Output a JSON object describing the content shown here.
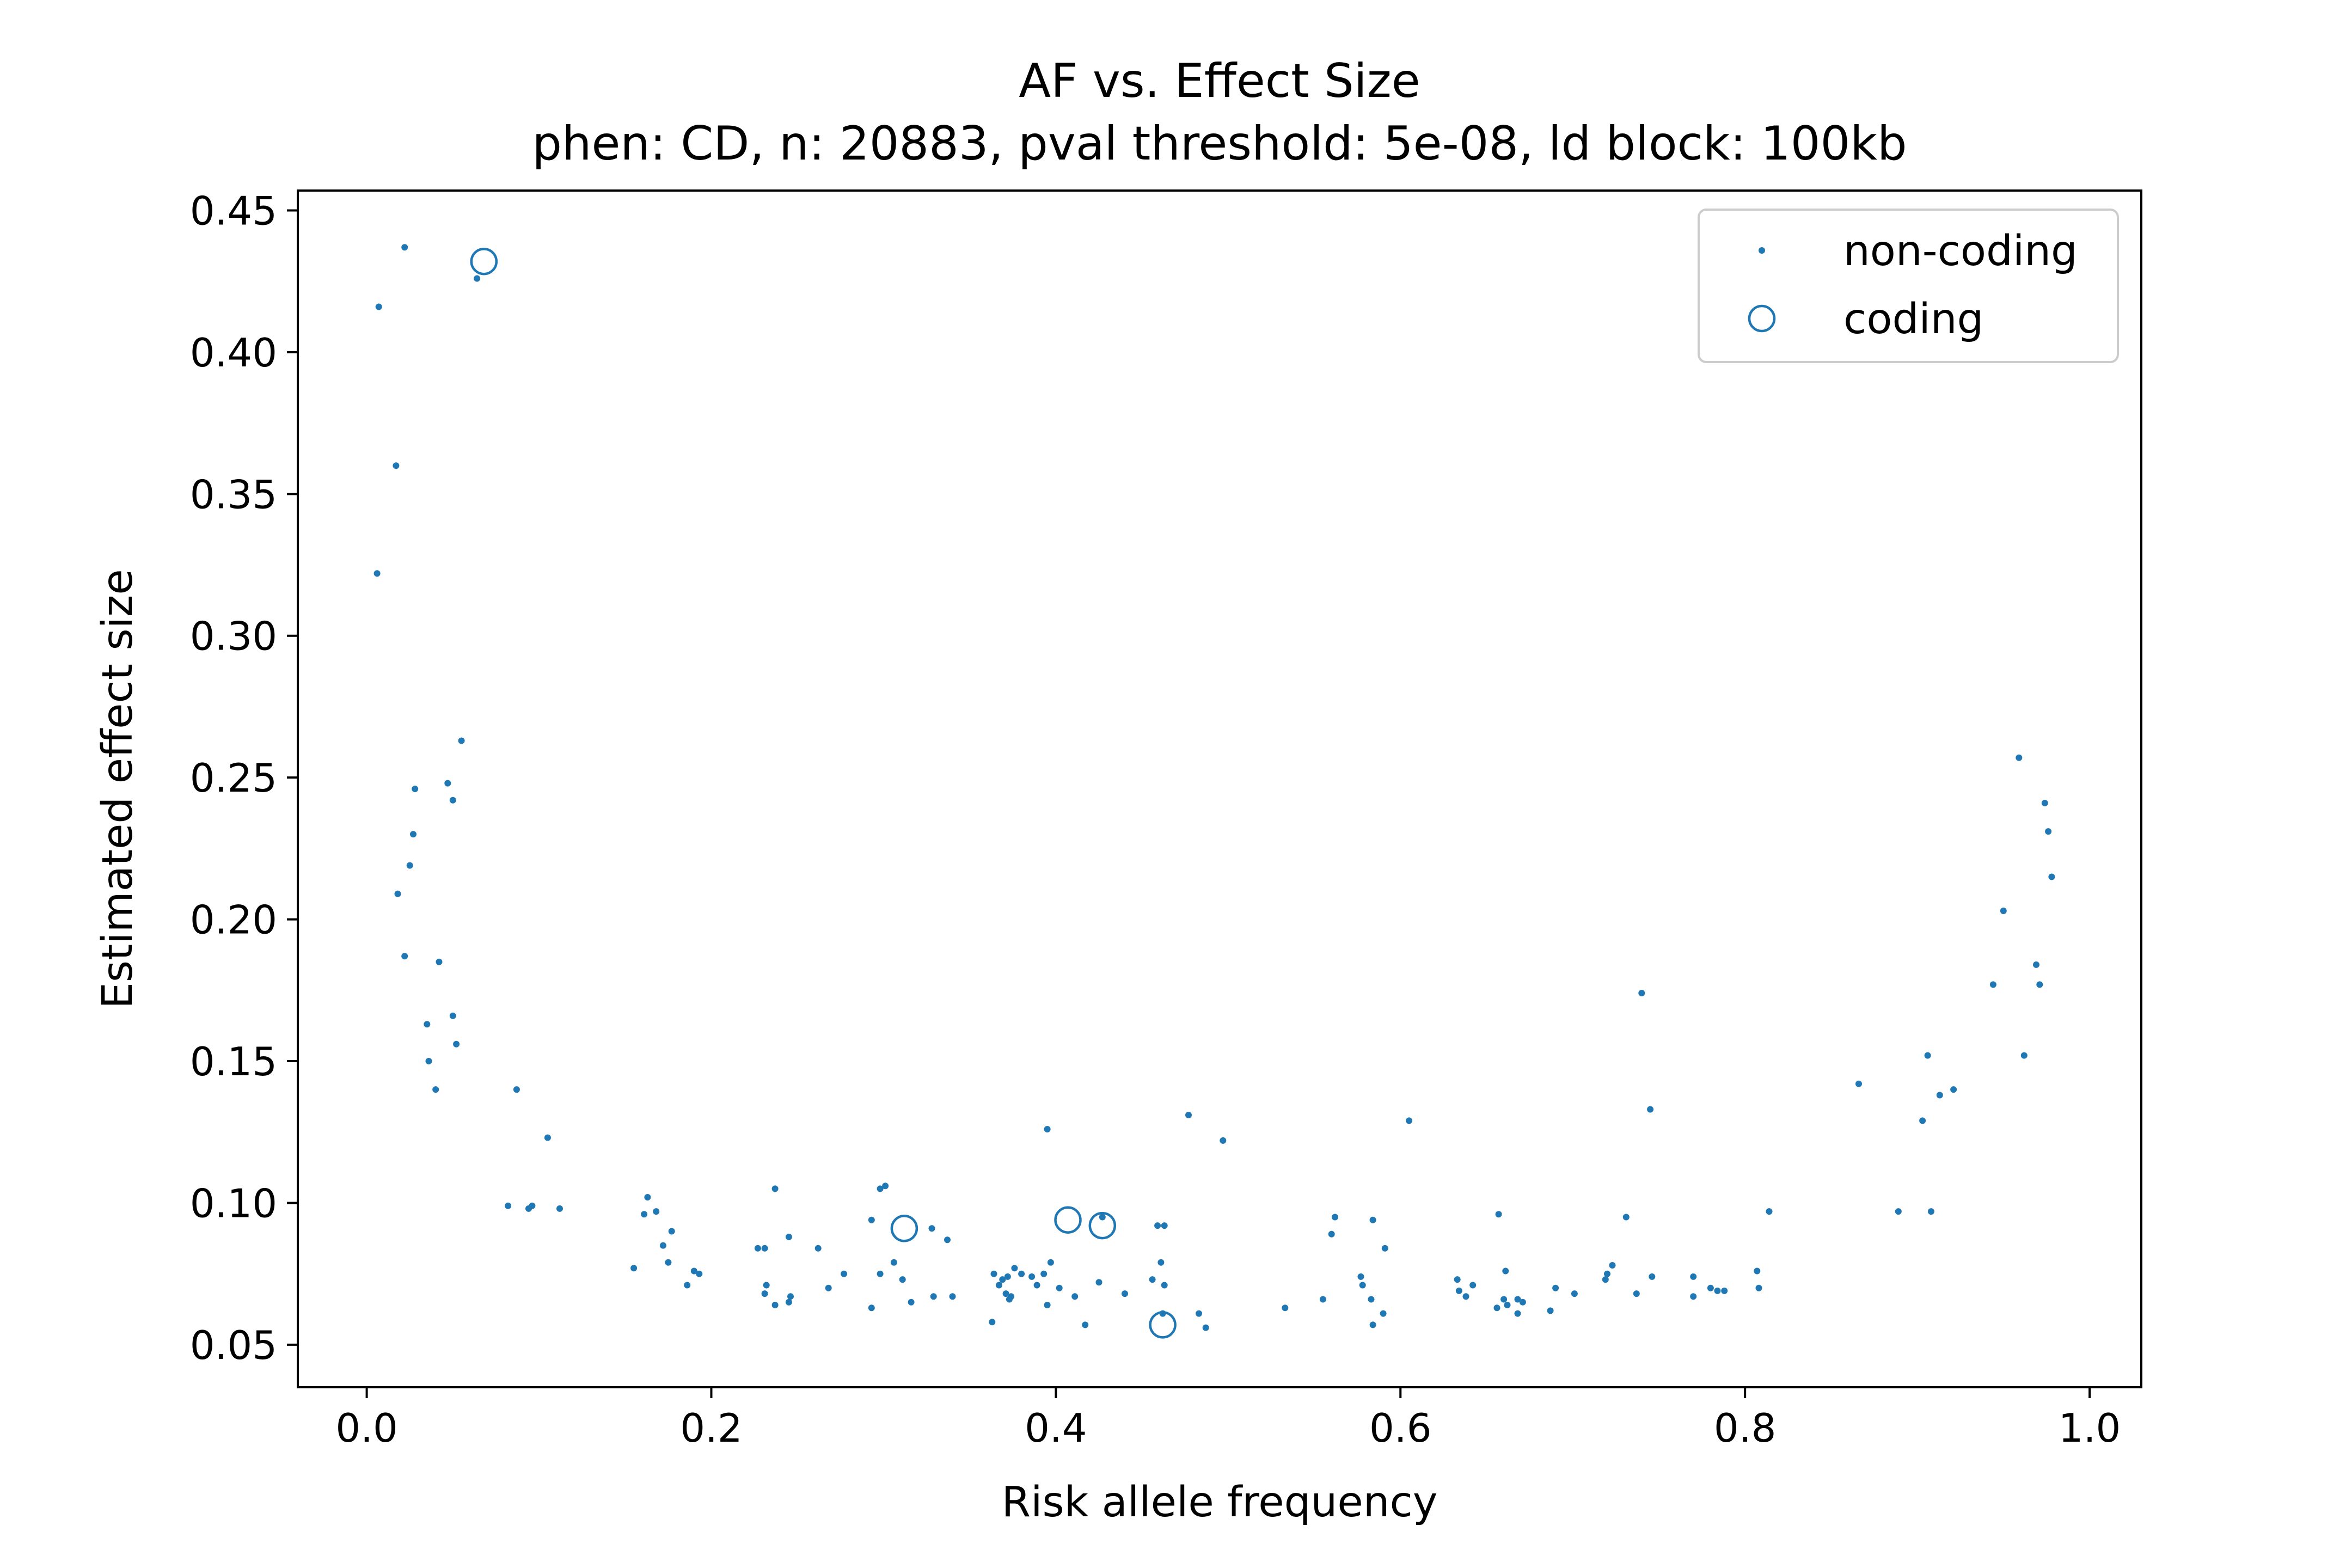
{
  "chart_data": {
    "type": "scatter",
    "title": "AF vs. Effect Size",
    "subtitle": "phen: CD, n: 20883, pval threshold: 5e-08, ld block: 100kb",
    "xlabel": "Risk allele frequency",
    "ylabel": "Estimated effect size",
    "xlim": [
      -0.04,
      1.03
    ],
    "ylim": [
      0.035,
      0.457
    ],
    "xticks": [
      "0.0",
      "0.2",
      "0.4",
      "0.6",
      "0.8",
      "1.0"
    ],
    "yticks": [
      "0.05",
      "0.10",
      "0.15",
      "0.20",
      "0.25",
      "0.30",
      "0.35",
      "0.40",
      "0.45"
    ],
    "grid": false,
    "legend_position": "top-right",
    "colors": {
      "series": "#1f77b4"
    },
    "series": [
      {
        "name": "non-coding",
        "marker": "dot",
        "points": [
          [
            0.007,
            0.416
          ],
          [
            0.022,
            0.437
          ],
          [
            0.017,
            0.36
          ],
          [
            0.006,
            0.322
          ],
          [
            0.064,
            0.426
          ],
          [
            0.055,
            0.263
          ],
          [
            0.028,
            0.246
          ],
          [
            0.047,
            0.248
          ],
          [
            0.05,
            0.242
          ],
          [
            0.027,
            0.23
          ],
          [
            0.025,
            0.219
          ],
          [
            0.018,
            0.209
          ],
          [
            0.022,
            0.187
          ],
          [
            0.042,
            0.185
          ],
          [
            0.05,
            0.166
          ],
          [
            0.035,
            0.163
          ],
          [
            0.052,
            0.156
          ],
          [
            0.036,
            0.15
          ],
          [
            0.04,
            0.14
          ],
          [
            0.087,
            0.14
          ],
          [
            0.105,
            0.123
          ],
          [
            0.082,
            0.099
          ],
          [
            0.096,
            0.099
          ],
          [
            0.094,
            0.098
          ],
          [
            0.112,
            0.098
          ],
          [
            0.163,
            0.102
          ],
          [
            0.161,
            0.096
          ],
          [
            0.168,
            0.097
          ],
          [
            0.177,
            0.09
          ],
          [
            0.172,
            0.085
          ],
          [
            0.175,
            0.079
          ],
          [
            0.155,
            0.077
          ],
          [
            0.186,
            0.071
          ],
          [
            0.19,
            0.076
          ],
          [
            0.193,
            0.075
          ],
          [
            0.227,
            0.084
          ],
          [
            0.231,
            0.084
          ],
          [
            0.237,
            0.105
          ],
          [
            0.245,
            0.088
          ],
          [
            0.262,
            0.084
          ],
          [
            0.277,
            0.075
          ],
          [
            0.232,
            0.071
          ],
          [
            0.231,
            0.068
          ],
          [
            0.237,
            0.064
          ],
          [
            0.245,
            0.065
          ],
          [
            0.246,
            0.067
          ],
          [
            0.268,
            0.07
          ],
          [
            0.298,
            0.105
          ],
          [
            0.301,
            0.106
          ],
          [
            0.293,
            0.094
          ],
          [
            0.328,
            0.091
          ],
          [
            0.337,
            0.087
          ],
          [
            0.306,
            0.079
          ],
          [
            0.298,
            0.075
          ],
          [
            0.311,
            0.073
          ],
          [
            0.316,
            0.065
          ],
          [
            0.329,
            0.067
          ],
          [
            0.34,
            0.067
          ],
          [
            0.293,
            0.063
          ],
          [
            0.395,
            0.126
          ],
          [
            0.364,
            0.075
          ],
          [
            0.369,
            0.073
          ],
          [
            0.372,
            0.074
          ],
          [
            0.376,
            0.077
          ],
          [
            0.38,
            0.075
          ],
          [
            0.386,
            0.074
          ],
          [
            0.389,
            0.071
          ],
          [
            0.393,
            0.075
          ],
          [
            0.397,
            0.079
          ],
          [
            0.402,
            0.07
          ],
          [
            0.367,
            0.071
          ],
          [
            0.371,
            0.068
          ],
          [
            0.373,
            0.066
          ],
          [
            0.374,
            0.067
          ],
          [
            0.395,
            0.064
          ],
          [
            0.411,
            0.067
          ],
          [
            0.425,
            0.072
          ],
          [
            0.427,
            0.095
          ],
          [
            0.44,
            0.068
          ],
          [
            0.417,
            0.057
          ],
          [
            0.363,
            0.058
          ],
          [
            0.459,
            0.092
          ],
          [
            0.463,
            0.092
          ],
          [
            0.461,
            0.079
          ],
          [
            0.456,
            0.073
          ],
          [
            0.463,
            0.071
          ],
          [
            0.477,
            0.131
          ],
          [
            0.497,
            0.122
          ],
          [
            0.483,
            0.061
          ],
          [
            0.487,
            0.056
          ],
          [
            0.462,
            0.061
          ],
          [
            0.533,
            0.063
          ],
          [
            0.555,
            0.066
          ],
          [
            0.562,
            0.095
          ],
          [
            0.56,
            0.089
          ],
          [
            0.584,
            0.094
          ],
          [
            0.591,
            0.084
          ],
          [
            0.577,
            0.074
          ],
          [
            0.578,
            0.071
          ],
          [
            0.583,
            0.066
          ],
          [
            0.59,
            0.061
          ],
          [
            0.584,
            0.057
          ],
          [
            0.605,
            0.129
          ],
          [
            0.633,
            0.073
          ],
          [
            0.634,
            0.069
          ],
          [
            0.638,
            0.067
          ],
          [
            0.642,
            0.071
          ],
          [
            0.657,
            0.096
          ],
          [
            0.661,
            0.076
          ],
          [
            0.66,
            0.066
          ],
          [
            0.656,
            0.063
          ],
          [
            0.662,
            0.064
          ],
          [
            0.668,
            0.066
          ],
          [
            0.671,
            0.065
          ],
          [
            0.668,
            0.061
          ],
          [
            0.69,
            0.07
          ],
          [
            0.701,
            0.068
          ],
          [
            0.687,
            0.062
          ],
          [
            0.72,
            0.075
          ],
          [
            0.723,
            0.078
          ],
          [
            0.719,
            0.073
          ],
          [
            0.731,
            0.095
          ],
          [
            0.74,
            0.174
          ],
          [
            0.745,
            0.133
          ],
          [
            0.737,
            0.068
          ],
          [
            0.746,
            0.074
          ],
          [
            0.77,
            0.074
          ],
          [
            0.77,
            0.067
          ],
          [
            0.78,
            0.07
          ],
          [
            0.784,
            0.069
          ],
          [
            0.788,
            0.069
          ],
          [
            0.807,
            0.076
          ],
          [
            0.808,
            0.07
          ],
          [
            0.814,
            0.097
          ],
          [
            0.866,
            0.142
          ],
          [
            0.889,
            0.097
          ],
          [
            0.908,
            0.097
          ],
          [
            0.906,
            0.152
          ],
          [
            0.903,
            0.129
          ],
          [
            0.913,
            0.138
          ],
          [
            0.921,
            0.14
          ],
          [
            0.944,
            0.177
          ],
          [
            0.95,
            0.203
          ],
          [
            0.959,
            0.257
          ],
          [
            0.962,
            0.152
          ],
          [
            0.969,
            0.184
          ],
          [
            0.971,
            0.177
          ],
          [
            0.974,
            0.241
          ],
          [
            0.976,
            0.231
          ],
          [
            0.978,
            0.215
          ]
        ]
      },
      {
        "name": "coding",
        "marker": "circle",
        "points": [
          [
            0.068,
            0.432
          ],
          [
            0.312,
            0.091
          ],
          [
            0.407,
            0.094
          ],
          [
            0.427,
            0.092
          ],
          [
            0.462,
            0.057
          ]
        ]
      }
    ]
  }
}
